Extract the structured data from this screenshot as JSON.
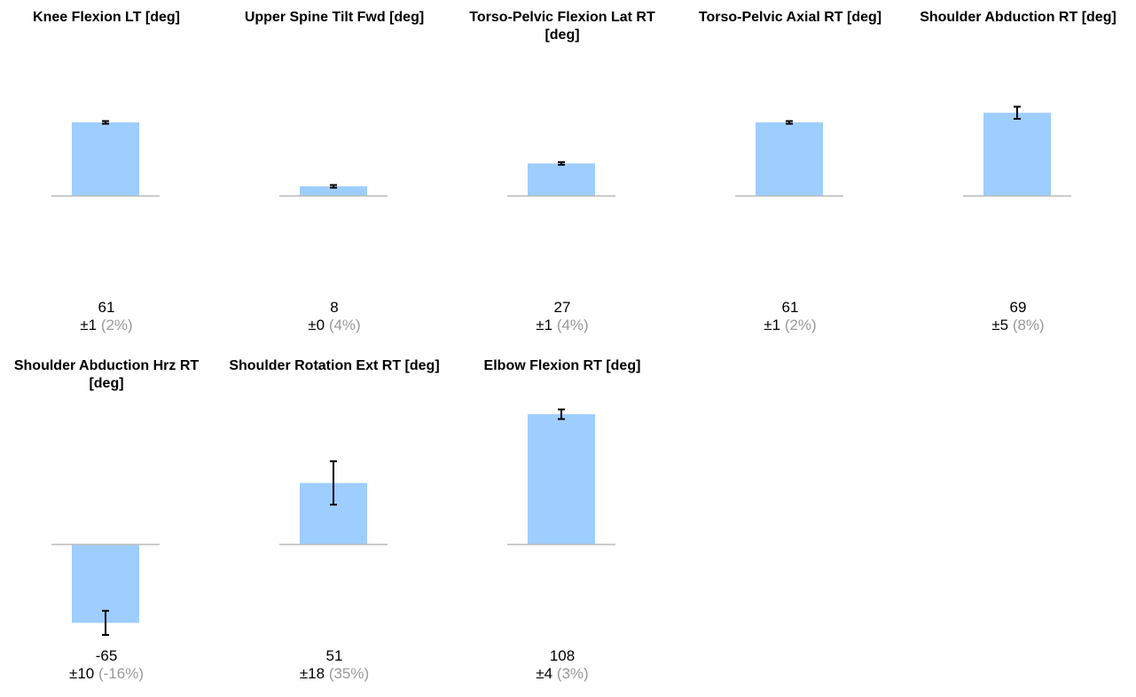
{
  "colors": {
    "bar": "#9ecdff",
    "error_bar": "#000000",
    "baseline": "#bbbbbb",
    "cv_text": "#999999"
  },
  "chart_data": [
    {
      "type": "bar",
      "title": "Knee Flexion LT [deg]",
      "value": 61,
      "error": 1,
      "sd_label": "±1",
      "cv_label": "(2%)",
      "value_label": "61"
    },
    {
      "type": "bar",
      "title": "Upper Spine Tilt Fwd [deg]",
      "value": 8,
      "error": 0.3,
      "sd_label": "±0",
      "cv_label": "(4%)",
      "value_label": "8"
    },
    {
      "type": "bar",
      "title": "Torso-Pelvic Flexion Lat RT [deg]",
      "value": 27,
      "error": 1,
      "sd_label": "±1",
      "cv_label": "(4%)",
      "value_label": "27"
    },
    {
      "type": "bar",
      "title": "Torso-Pelvic Axial RT [deg]",
      "value": 61,
      "error": 1,
      "sd_label": "±1",
      "cv_label": "(2%)",
      "value_label": "61"
    },
    {
      "type": "bar",
      "title": "Shoulder Abduction RT [deg]",
      "value": 69,
      "error": 5,
      "sd_label": "±5",
      "cv_label": "(8%)",
      "value_label": "69"
    },
    {
      "type": "bar",
      "title": "Shoulder Abduction Hrz RT [deg]",
      "value": -65,
      "error": 10,
      "sd_label": "±10",
      "cv_label": "(-16%)",
      "value_label": "-65"
    },
    {
      "type": "bar",
      "title": "Shoulder Rotation Ext RT [deg]",
      "value": 51,
      "error": 18,
      "sd_label": "±18",
      "cv_label": "(35%)",
      "value_label": "51"
    },
    {
      "type": "bar",
      "title": "Elbow Flexion RT [deg]",
      "value": 108,
      "error": 4,
      "sd_label": "±4",
      "cv_label": "(3%)",
      "value_label": "108"
    }
  ]
}
